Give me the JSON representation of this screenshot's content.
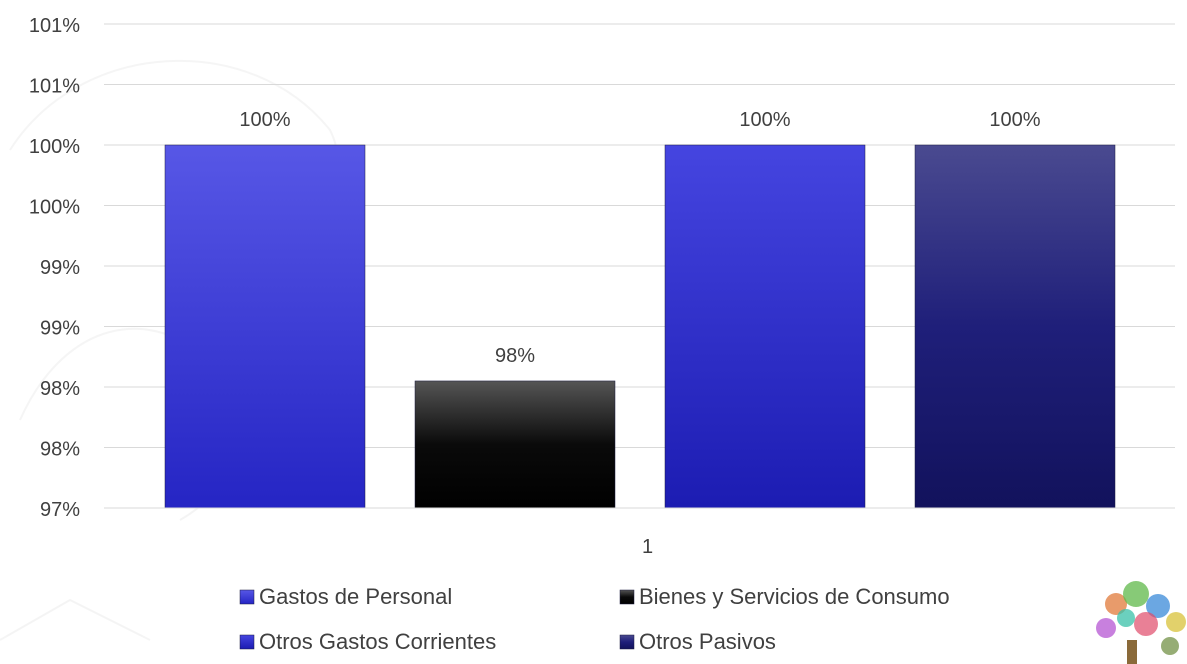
{
  "chart_data": {
    "type": "bar",
    "categories": [
      "1"
    ],
    "series": [
      {
        "name": "Gastos de Personal",
        "values": [
          100
        ],
        "label": "100%",
        "color": "#3535d8"
      },
      {
        "name": "Bienes y Servicios de Consumo",
        "values": [
          98.05
        ],
        "label": "98%",
        "color": "#0d0d0d"
      },
      {
        "name": "Otros Gastos Corrientes",
        "values": [
          100
        ],
        "label": "100%",
        "color": "#2a2ad0"
      },
      {
        "name": "Otros Pasivos",
        "values": [
          100
        ],
        "label": "100%",
        "color": "#232380"
      }
    ],
    "ylim": [
      97,
      101
    ],
    "yticks": [
      97,
      97.5,
      98,
      98.5,
      99,
      99.5,
      100,
      100.5,
      101
    ],
    "ytick_labels": [
      "97%",
      "98%",
      "98%",
      "99%",
      "99%",
      "100%",
      "100%",
      "101%",
      "101%"
    ],
    "xtick_labels": [
      "1"
    ],
    "grid": true,
    "legend_position": "bottom",
    "title": "",
    "xlabel": "",
    "ylabel": ""
  }
}
